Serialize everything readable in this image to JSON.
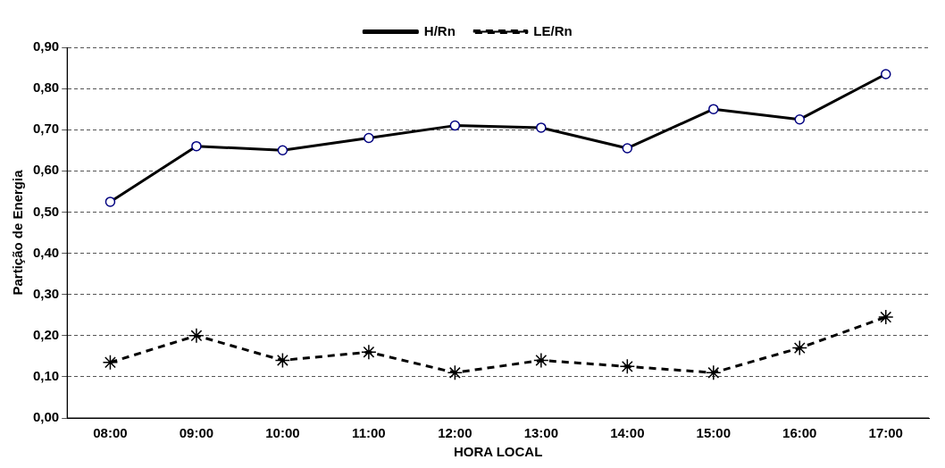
{
  "chart_data": {
    "type": "line",
    "xlabel": "HORA LOCAL",
    "ylabel": "Partição de Energia",
    "categories": [
      "08:00",
      "09:00",
      "10:00",
      "11:00",
      "12:00",
      "13:00",
      "14:00",
      "15:00",
      "16:00",
      "17:00"
    ],
    "series": [
      {
        "name": "H/Rn",
        "color": "#000000",
        "marker": "circle",
        "line_style": "solid",
        "values": [
          0.525,
          0.66,
          0.65,
          0.68,
          0.71,
          0.705,
          0.655,
          0.75,
          0.725,
          0.835
        ]
      },
      {
        "name": "LE/Rn",
        "color": "#000000",
        "marker": "cross",
        "line_style": "dashed",
        "values": [
          0.135,
          0.2,
          0.14,
          0.16,
          0.11,
          0.14,
          0.125,
          0.11,
          0.17,
          0.245
        ]
      }
    ],
    "ylim": [
      0,
      0.9
    ],
    "yticks": [
      {
        "value": 0,
        "label": "0,00"
      },
      {
        "value": 0.1,
        "label": "0,10"
      },
      {
        "value": 0.2,
        "label": "0,20"
      },
      {
        "value": 0.3,
        "label": "0,30"
      },
      {
        "value": 0.4,
        "label": "0,40"
      },
      {
        "value": 0.5,
        "label": "0,50"
      },
      {
        "value": 0.6,
        "label": "0,60"
      },
      {
        "value": 0.7,
        "label": "0,70"
      },
      {
        "value": 0.8,
        "label": "0,80"
      },
      {
        "value": 0.9,
        "label": "0,90"
      }
    ],
    "grid": "y",
    "legend": "top"
  }
}
